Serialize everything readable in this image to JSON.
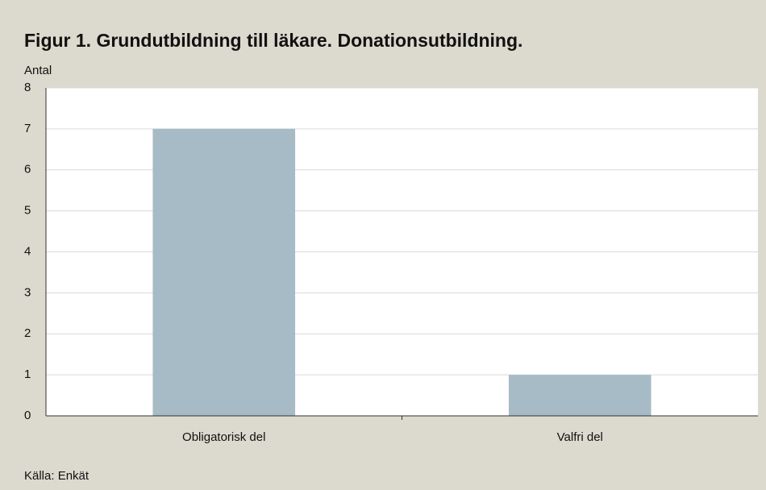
{
  "chart_data": {
    "type": "bar",
    "title": "Figur 1. Grundutbildning till läkare. Donationsutbildning.",
    "y_label": "Antal",
    "source": "Källa: Enkät",
    "categories": [
      "Obligatorisk del",
      "Valfri del"
    ],
    "values": [
      7,
      1
    ],
    "color": "#a7bbc6",
    "ylim": [
      0,
      8
    ],
    "yticks": [
      0,
      1,
      2,
      3,
      4,
      5,
      6,
      7,
      8
    ],
    "grid": true
  }
}
